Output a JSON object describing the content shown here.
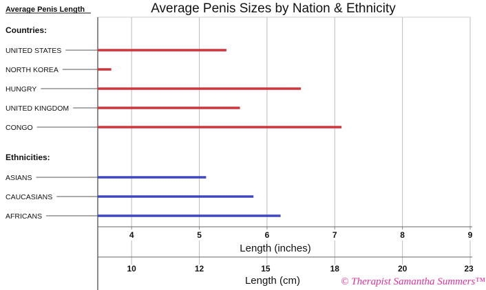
{
  "chart_data": {
    "type": "bar",
    "orientation": "horizontal",
    "title": "Average Penis Sizes by Nation & Ethnicity",
    "side_title": "Average Penis Length",
    "xlabel": "Length (inches)",
    "xlabel2": "Length (cm)",
    "xlim": [
      3.5,
      9
    ],
    "grid": true,
    "x_ticks": [
      "4",
      "5",
      "6",
      "7",
      "8",
      "9"
    ],
    "x_tick_values": [
      4,
      5,
      6,
      7,
      8,
      9
    ],
    "cm_ticks": [
      "10",
      "12",
      "15",
      "18",
      "20",
      "23"
    ],
    "groups": [
      {
        "name": "Countries:",
        "color": "#d3333a",
        "categories": [
          "UNITED STATES",
          "NORTH KOREA",
          "HUNGRY",
          "UNITED KINGDOM",
          "CONGO"
        ],
        "values": [
          5.4,
          3.7,
          6.5,
          5.6,
          7.1
        ]
      },
      {
        "name": "Ethnicities:",
        "color": "#4048bf",
        "categories": [
          "ASIANS",
          "CAUCASIANS",
          "AFRICANS"
        ],
        "values": [
          5.1,
          5.8,
          6.2
        ]
      }
    ],
    "watermark": "© Therapist Samantha Summers™"
  }
}
